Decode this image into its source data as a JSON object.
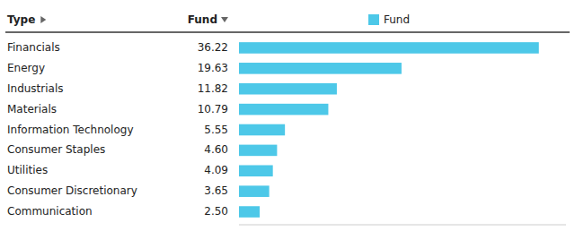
{
  "chart_data": {
    "type": "bar",
    "orientation": "horizontal",
    "categories": [
      "Financials",
      "Energy",
      "Industrials",
      "Materials",
      "Information Technology",
      "Consumer Staples",
      "Utilities",
      "Consumer Discretionary",
      "Communication"
    ],
    "series": [
      {
        "name": "Fund",
        "color": "#4DC8E8",
        "values": [
          36.22,
          19.63,
          11.82,
          10.79,
          5.55,
          4.6,
          4.09,
          3.65,
          2.5
        ],
        "value_labels": [
          "36.22",
          "19.63",
          "11.82",
          "10.79",
          "5.55",
          "4.60",
          "4.09",
          "3.65",
          "2.50"
        ]
      }
    ],
    "annotations": [
      "Type",
      "Fund"
    ],
    "xlim": [
      0,
      39.5
    ],
    "data_labels": true,
    "tick_labels": false,
    "grid": false,
    "legend": "top"
  }
}
